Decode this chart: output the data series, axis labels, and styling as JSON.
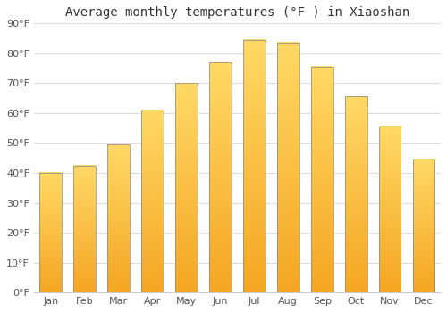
{
  "title": "Average monthly temperatures (°F ) in Xiaoshan",
  "months": [
    "Jan",
    "Feb",
    "Mar",
    "Apr",
    "May",
    "Jun",
    "Jul",
    "Aug",
    "Sep",
    "Oct",
    "Nov",
    "Dec"
  ],
  "values": [
    40,
    42.5,
    49.5,
    61,
    70,
    77,
    84.5,
    83.5,
    75.5,
    65.5,
    55.5,
    44.5
  ],
  "bar_color_bottom": "#F5A623",
  "bar_color_top": "#FFD966",
  "bar_edge_color": "#888888",
  "background_color": "#ffffff",
  "plot_bg_color": "#ffffff",
  "grid_color": "#dddddd",
  "ylim": [
    0,
    90
  ],
  "yticks": [
    0,
    10,
    20,
    30,
    40,
    50,
    60,
    70,
    80,
    90
  ],
  "title_fontsize": 10,
  "tick_fontsize": 8,
  "bar_width": 0.65,
  "tick_label_color": "#555555",
  "title_color": "#333333"
}
